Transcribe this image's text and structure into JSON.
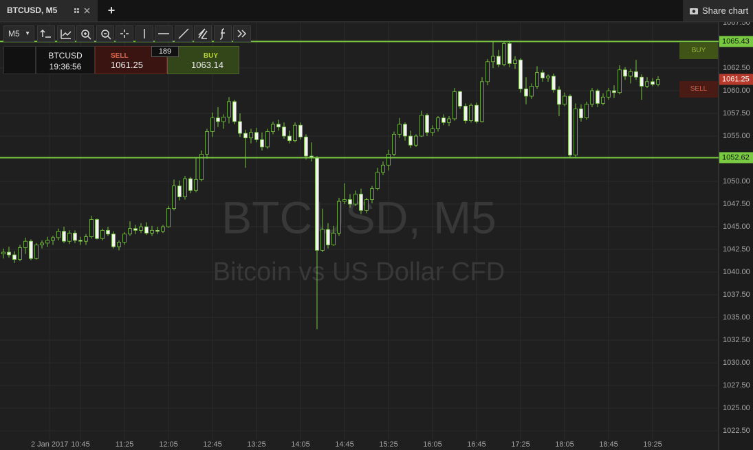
{
  "tabs": {
    "title": "BTCUSD, M5",
    "add": "+",
    "share": "Share chart"
  },
  "toolbar": {
    "interval": "M5"
  },
  "trade_panel": {
    "symbol": "BTCUSD",
    "time": "19:36:56",
    "sell_label": "SELL",
    "sell_price": 1061.25,
    "spread": 189,
    "buy_label": "BUY",
    "buy_price": 1063.14
  },
  "order_tags": {
    "buy": "BUY",
    "sell": "SELL"
  },
  "chart_data": {
    "type": "candlestick",
    "title": "BTCUSD, M5",
    "subtitle": "Bitcoin vs US Dollar CFD",
    "up_color": "#1f1f1f",
    "down_color": "#f2f2f2",
    "wick_color": "#7ac943",
    "grid": true,
    "ylim": [
      1021.52,
      1067.58
    ],
    "yticks": [
      {
        "value": 1022.5,
        "label": "1022.50"
      },
      {
        "value": 1025,
        "label": "1025.00"
      },
      {
        "value": 1027.5,
        "label": "1027.50"
      },
      {
        "value": 1030,
        "label": "1030.00"
      },
      {
        "value": 1032.5,
        "label": "1032.50"
      },
      {
        "value": 1035,
        "label": "1035.00"
      },
      {
        "value": 1037.5,
        "label": "1037.50"
      },
      {
        "value": 1040,
        "label": "1040.00"
      },
      {
        "value": 1042.5,
        "label": "1042.50"
      },
      {
        "value": 1045,
        "label": "1045.00"
      },
      {
        "value": 1047.5,
        "label": "1047.50"
      },
      {
        "value": 1050,
        "label": "1050.00"
      },
      {
        "value": 1055,
        "label": "1055.00"
      },
      {
        "value": 1057.5,
        "label": "1057.50"
      },
      {
        "value": 1060,
        "label": "1060.00"
      },
      {
        "value": 1062.5,
        "label": "1062.50"
      },
      {
        "value": 1067.5,
        "label": "1067.50"
      }
    ],
    "xlim": [
      -0.625,
      130
    ],
    "xticks": [
      {
        "value": 8.4,
        "label": "2 Jan 2017"
      },
      {
        "value": 14,
        "label": "10:45"
      },
      {
        "value": 22,
        "label": "11:25"
      },
      {
        "value": 30,
        "label": "12:05"
      },
      {
        "value": 38,
        "label": "12:45"
      },
      {
        "value": 46,
        "label": "13:25"
      },
      {
        "value": 54,
        "label": "14:05"
      },
      {
        "value": 62,
        "label": "14:45"
      },
      {
        "value": 70,
        "label": "15:25"
      },
      {
        "value": 78,
        "label": "16:05"
      },
      {
        "value": 86,
        "label": "16:45"
      },
      {
        "value": 94,
        "label": "17:25"
      },
      {
        "value": 102,
        "label": "18:05"
      },
      {
        "value": 110,
        "label": "18:45"
      },
      {
        "value": 118,
        "label": "19:25"
      }
    ],
    "levels": [
      {
        "value": 1065.43,
        "color": "#7ac943"
      },
      {
        "value": 1052.62,
        "color": "#7ac943"
      }
    ],
    "price": {
      "value": 1061.25,
      "color": "#b53a2c"
    },
    "candles": [
      [
        1042.0,
        1042.6,
        1041.5,
        1042.2
      ],
      [
        1042.2,
        1042.8,
        1041.6,
        1041.9
      ],
      [
        1041.9,
        1042.3,
        1041.0,
        1041.4
      ],
      [
        1041.4,
        1043.0,
        1041.2,
        1042.7
      ],
      [
        1042.7,
        1043.8,
        1042.0,
        1043.4
      ],
      [
        1043.4,
        1043.6,
        1041.3,
        1041.5
      ],
      [
        1041.5,
        1043.2,
        1041.4,
        1043.0
      ],
      [
        1043.0,
        1043.5,
        1042.6,
        1043.2
      ],
      [
        1043.2,
        1043.9,
        1042.8,
        1043.5
      ],
      [
        1043.5,
        1044.0,
        1043.0,
        1043.8
      ],
      [
        1043.8,
        1044.8,
        1043.5,
        1044.5
      ],
      [
        1044.5,
        1045.0,
        1043.2,
        1043.4
      ],
      [
        1043.4,
        1044.6,
        1043.1,
        1044.3
      ],
      [
        1044.3,
        1044.6,
        1043.2,
        1043.5
      ],
      [
        1043.5,
        1043.9,
        1043.0,
        1043.4
      ],
      [
        1043.4,
        1044.2,
        1043.0,
        1043.9
      ],
      [
        1043.9,
        1046.2,
        1043.7,
        1045.8
      ],
      [
        1045.8,
        1045.9,
        1043.6,
        1043.7
      ],
      [
        1043.7,
        1044.8,
        1043.5,
        1044.6
      ],
      [
        1044.6,
        1045.0,
        1044.0,
        1044.2
      ],
      [
        1044.2,
        1044.5,
        1042.6,
        1042.8
      ],
      [
        1042.8,
        1043.5,
        1042.4,
        1043.3
      ],
      [
        1043.3,
        1044.4,
        1043.0,
        1044.2
      ],
      [
        1044.2,
        1045.6,
        1044.0,
        1044.8
      ],
      [
        1044.8,
        1045.2,
        1044.2,
        1044.6
      ],
      [
        1044.6,
        1045.4,
        1044.3,
        1045.0
      ],
      [
        1045.0,
        1045.5,
        1044.1,
        1044.3
      ],
      [
        1044.3,
        1045.1,
        1044.0,
        1044.6
      ],
      [
        1044.6,
        1045.0,
        1044.2,
        1044.5
      ],
      [
        1044.5,
        1045.2,
        1044.3,
        1045.0
      ],
      [
        1045.0,
        1047.3,
        1044.9,
        1047.0
      ],
      [
        1047.0,
        1050.2,
        1046.8,
        1049.5
      ],
      [
        1049.5,
        1050.1,
        1047.9,
        1048.3
      ],
      [
        1048.3,
        1050.6,
        1048.0,
        1050.3
      ],
      [
        1050.3,
        1050.5,
        1048.7,
        1049.0
      ],
      [
        1049.0,
        1052.6,
        1048.8,
        1050.2
      ],
      [
        1050.2,
        1053.4,
        1050.0,
        1053.0
      ],
      [
        1053.0,
        1055.8,
        1052.5,
        1055.5
      ],
      [
        1055.5,
        1057.6,
        1054.9,
        1057.0
      ],
      [
        1057.0,
        1058.2,
        1056.0,
        1056.6
      ],
      [
        1056.6,
        1057.4,
        1055.8,
        1057.1
      ],
      [
        1057.1,
        1059.3,
        1056.4,
        1058.8
      ],
      [
        1058.8,
        1059.0,
        1056.3,
        1056.6
      ],
      [
        1056.6,
        1057.5,
        1054.9,
        1055.3
      ],
      [
        1055.3,
        1055.7,
        1051.5,
        1054.8
      ],
      [
        1054.8,
        1055.8,
        1054.2,
        1055.4
      ],
      [
        1055.4,
        1055.9,
        1054.3,
        1054.6
      ],
      [
        1054.6,
        1055.4,
        1053.4,
        1053.8
      ],
      [
        1053.8,
        1055.8,
        1053.6,
        1055.5
      ],
      [
        1055.5,
        1056.6,
        1055.2,
        1056.3
      ],
      [
        1056.3,
        1056.8,
        1055.6,
        1056.0
      ],
      [
        1056.0,
        1056.5,
        1054.7,
        1055.0
      ],
      [
        1055.0,
        1055.6,
        1054.2,
        1054.5
      ],
      [
        1054.5,
        1056.5,
        1054.3,
        1056.2
      ],
      [
        1056.2,
        1056.5,
        1054.6,
        1054.9
      ],
      [
        1054.9,
        1055.2,
        1052.4,
        1052.8
      ],
      [
        1052.8,
        1054.3,
        1052.2,
        1052.6
      ],
      [
        1052.6,
        1052.8,
        1033.7,
        1042.4
      ],
      [
        1042.4,
        1047.0,
        1042.2,
        1044.7
      ],
      [
        1044.7,
        1045.4,
        1042.6,
        1043.0
      ],
      [
        1043.0,
        1045.1,
        1042.9,
        1044.3
      ],
      [
        1044.3,
        1048.2,
        1044.0,
        1047.8
      ],
      [
        1047.8,
        1049.8,
        1047.5,
        1048.0
      ],
      [
        1048.0,
        1048.6,
        1047.1,
        1047.5
      ],
      [
        1047.5,
        1049.0,
        1047.3,
        1048.6
      ],
      [
        1048.6,
        1049.2,
        1046.4,
        1046.8
      ],
      [
        1046.8,
        1048.2,
        1046.5,
        1048.0
      ],
      [
        1048.0,
        1049.5,
        1047.6,
        1049.2
      ],
      [
        1049.2,
        1051.5,
        1049.0,
        1051.0
      ],
      [
        1051.0,
        1052.2,
        1050.7,
        1051.8
      ],
      [
        1051.8,
        1053.5,
        1051.2,
        1053.0
      ],
      [
        1053.0,
        1055.5,
        1052.8,
        1055.2
      ],
      [
        1055.2,
        1057.0,
        1054.8,
        1056.3
      ],
      [
        1056.3,
        1056.5,
        1054.5,
        1055.0
      ],
      [
        1055.0,
        1055.6,
        1053.7,
        1054.0
      ],
      [
        1054.0,
        1055.2,
        1053.8,
        1055.0
      ],
      [
        1055.0,
        1057.8,
        1054.9,
        1057.3
      ],
      [
        1057.3,
        1057.5,
        1055.0,
        1055.4
      ],
      [
        1055.4,
        1056.2,
        1055.0,
        1055.8
      ],
      [
        1055.8,
        1057.2,
        1055.5,
        1057.0
      ],
      [
        1057.0,
        1057.4,
        1056.2,
        1056.5
      ],
      [
        1056.5,
        1057.2,
        1056.1,
        1056.9
      ],
      [
        1056.9,
        1060.3,
        1056.7,
        1059.9
      ],
      [
        1059.9,
        1060.0,
        1058.0,
        1058.3
      ],
      [
        1058.3,
        1058.6,
        1056.4,
        1056.7
      ],
      [
        1056.7,
        1058.6,
        1056.5,
        1058.4
      ],
      [
        1058.4,
        1058.7,
        1056.4,
        1056.6
      ],
      [
        1056.6,
        1061.5,
        1056.5,
        1061.0
      ],
      [
        1061.0,
        1063.5,
        1060.6,
        1063.2
      ],
      [
        1063.2,
        1065.4,
        1062.5,
        1063.8
      ],
      [
        1063.8,
        1064.5,
        1062.6,
        1062.9
      ],
      [
        1062.9,
        1065.43,
        1062.7,
        1065.2
      ],
      [
        1065.2,
        1065.4,
        1062.6,
        1063.0
      ],
      [
        1063.0,
        1063.8,
        1062.4,
        1063.4
      ],
      [
        1063.4,
        1063.6,
        1059.8,
        1060.2
      ],
      [
        1060.2,
        1061.5,
        1058.5,
        1059.4
      ],
      [
        1059.4,
        1060.8,
        1059.1,
        1060.5
      ],
      [
        1060.5,
        1062.7,
        1060.2,
        1062.0
      ],
      [
        1062.0,
        1062.3,
        1061.0,
        1061.4
      ],
      [
        1061.4,
        1061.8,
        1061.0,
        1061.6
      ],
      [
        1061.6,
        1061.9,
        1059.8,
        1060.1
      ],
      [
        1060.1,
        1060.5,
        1057.2,
        1058.5
      ],
      [
        1058.5,
        1059.8,
        1058.3,
        1059.4
      ],
      [
        1059.4,
        1059.6,
        1052.62,
        1052.9
      ],
      [
        1052.9,
        1058.6,
        1052.7,
        1058.0
      ],
      [
        1058.0,
        1058.5,
        1056.6,
        1057.0
      ],
      [
        1057.0,
        1058.8,
        1056.8,
        1058.5
      ],
      [
        1058.5,
        1060.3,
        1058.2,
        1060.0
      ],
      [
        1060.0,
        1060.2,
        1058.2,
        1058.6
      ],
      [
        1058.6,
        1059.7,
        1058.4,
        1059.3
      ],
      [
        1059.3,
        1060.3,
        1059.0,
        1060.0
      ],
      [
        1060.0,
        1060.6,
        1059.2,
        1059.8
      ],
      [
        1059.8,
        1062.8,
        1059.6,
        1062.3
      ],
      [
        1062.3,
        1062.6,
        1061.2,
        1061.6
      ],
      [
        1061.6,
        1062.4,
        1060.8,
        1062.1
      ],
      [
        1062.1,
        1063.4,
        1061.2,
        1061.5
      ],
      [
        1061.5,
        1061.8,
        1059.0,
        1060.5
      ],
      [
        1060.5,
        1061.5,
        1060.3,
        1061.0
      ],
      [
        1061.0,
        1061.4,
        1060.5,
        1060.7
      ],
      [
        1060.7,
        1061.6,
        1060.5,
        1061.25
      ]
    ]
  }
}
